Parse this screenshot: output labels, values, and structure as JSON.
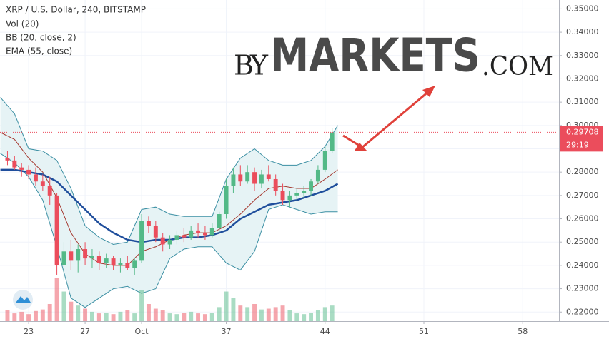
{
  "chart_data": {
    "type": "candlestick",
    "title": "XRP / U.S. Dollar, 240, BITSTAMP",
    "volume_name": "Vol (20)",
    "up_color": "#53b987",
    "down_color": "#eb4d5c",
    "x": [
      21.5,
      22,
      22.5,
      23,
      23.5,
      24,
      24.5,
      25,
      25.5,
      26,
      26.5,
      27,
      27.5,
      28,
      28.5,
      29,
      29.5,
      30,
      30.5,
      31,
      31.5,
      32,
      32.5,
      33,
      33.5,
      34,
      34.5,
      35,
      35.5,
      36,
      36.5,
      37,
      37.5,
      38,
      38.5,
      39,
      39.5,
      40,
      40.5,
      41,
      41.5,
      42,
      42.5,
      43,
      43.5,
      44,
      44.5
    ],
    "open": [
      0.286,
      0.285,
      0.282,
      0.281,
      0.279,
      0.276,
      0.274,
      0.27,
      0.24,
      0.246,
      0.242,
      0.247,
      0.243,
      0.244,
      0.241,
      0.243,
      0.24,
      0.241,
      0.239,
      0.242,
      0.259,
      0.257,
      0.252,
      0.249,
      0.251,
      0.253,
      0.252,
      0.255,
      0.254,
      0.253,
      0.256,
      0.262,
      0.274,
      0.279,
      0.276,
      0.28,
      0.275,
      0.279,
      0.277,
      0.272,
      0.268,
      0.27,
      0.271,
      0.272,
      0.276,
      0.281,
      0.289
    ],
    "high": [
      0.289,
      0.287,
      0.284,
      0.283,
      0.282,
      0.279,
      0.278,
      0.271,
      0.25,
      0.251,
      0.249,
      0.25,
      0.247,
      0.246,
      0.245,
      0.244,
      0.243,
      0.244,
      0.243,
      0.262,
      0.261,
      0.259,
      0.254,
      0.253,
      0.255,
      0.256,
      0.257,
      0.258,
      0.257,
      0.258,
      0.263,
      0.277,
      0.282,
      0.283,
      0.283,
      0.282,
      0.281,
      0.283,
      0.279,
      0.275,
      0.272,
      0.273,
      0.274,
      0.277,
      0.283,
      0.291,
      0.299
    ],
    "low": [
      0.283,
      0.281,
      0.278,
      0.277,
      0.274,
      0.272,
      0.266,
      0.236,
      0.234,
      0.238,
      0.237,
      0.24,
      0.239,
      0.238,
      0.239,
      0.238,
      0.237,
      0.238,
      0.236,
      0.241,
      0.254,
      0.25,
      0.246,
      0.247,
      0.249,
      0.25,
      0.251,
      0.252,
      0.251,
      0.252,
      0.254,
      0.26,
      0.271,
      0.274,
      0.275,
      0.272,
      0.273,
      0.276,
      0.27,
      0.266,
      0.265,
      0.268,
      0.269,
      0.27,
      0.275,
      0.28,
      0.288
    ],
    "close": [
      0.285,
      0.282,
      0.281,
      0.279,
      0.276,
      0.274,
      0.27,
      0.24,
      0.246,
      0.242,
      0.247,
      0.243,
      0.244,
      0.241,
      0.243,
      0.24,
      0.241,
      0.239,
      0.242,
      0.259,
      0.257,
      0.252,
      0.249,
      0.251,
      0.253,
      0.252,
      0.255,
      0.254,
      0.253,
      0.256,
      0.262,
      0.274,
      0.279,
      0.276,
      0.28,
      0.275,
      0.279,
      0.277,
      0.272,
      0.268,
      0.27,
      0.271,
      0.272,
      0.276,
      0.281,
      0.289,
      0.297
    ],
    "volume": [
      14,
      10,
      12,
      9,
      13,
      15,
      22,
      55,
      38,
      25,
      20,
      16,
      12,
      10,
      11,
      9,
      12,
      14,
      10,
      40,
      22,
      16,
      14,
      10,
      9,
      11,
      12,
      10,
      9,
      11,
      18,
      38,
      30,
      20,
      18,
      22,
      15,
      16,
      18,
      20,
      14,
      10,
      9,
      11,
      14,
      18,
      20
    ],
    "bollinger": {
      "name": "BB (20, close, 2)",
      "color": "#3b8fa3",
      "middle_color": "#a5382f",
      "fill": "#e6f3f5",
      "x": [
        21,
        22,
        23,
        24,
        25,
        26,
        27,
        28,
        29,
        30,
        31,
        32,
        33,
        34,
        35,
        36,
        37,
        38,
        39,
        40,
        41,
        42,
        43,
        44,
        44.9
      ],
      "upper": [
        0.312,
        0.305,
        0.29,
        0.289,
        0.285,
        0.273,
        0.257,
        0.252,
        0.249,
        0.25,
        0.264,
        0.265,
        0.262,
        0.261,
        0.261,
        0.261,
        0.277,
        0.286,
        0.29,
        0.285,
        0.283,
        0.283,
        0.285,
        0.291,
        0.3
      ],
      "middle": [
        0.297,
        0.294,
        0.286,
        0.28,
        0.269,
        0.254,
        0.245,
        0.241,
        0.24,
        0.24,
        0.246,
        0.248,
        0.251,
        0.253,
        0.254,
        0.254,
        0.257,
        0.262,
        0.268,
        0.273,
        0.274,
        0.273,
        0.273,
        0.277,
        0.281
      ],
      "lower": [
        0.288,
        0.284,
        0.278,
        0.268,
        0.248,
        0.226,
        0.222,
        0.226,
        0.23,
        0.231,
        0.228,
        0.23,
        0.243,
        0.247,
        0.248,
        0.248,
        0.241,
        0.238,
        0.246,
        0.264,
        0.266,
        0.264,
        0.262,
        0.263,
        0.263
      ]
    },
    "ema": {
      "name": "EMA (55, close)",
      "color": "#1f4e9c",
      "x": [
        21,
        22,
        23,
        24,
        25,
        26,
        27,
        28,
        29,
        30,
        31,
        32,
        33,
        34,
        35,
        36,
        37,
        38,
        39,
        40,
        41,
        42,
        43,
        44,
        44.9
      ],
      "values": [
        0.281,
        0.281,
        0.28,
        0.279,
        0.276,
        0.27,
        0.264,
        0.258,
        0.254,
        0.251,
        0.25,
        0.251,
        0.251,
        0.252,
        0.252,
        0.253,
        0.255,
        0.26,
        0.263,
        0.266,
        0.267,
        0.268,
        0.27,
        0.272,
        0.275
      ]
    },
    "xlim": [
      20.97,
      60.57
    ],
    "xticks": [
      23,
      27,
      {
        "value": 31,
        "label": "Oct"
      },
      37,
      44,
      51,
      58
    ],
    "ylim": [
      0.2161,
      0.3538
    ],
    "yticks": [
      {
        "value": 0.22,
        "label": "0.22000"
      },
      {
        "value": 0.23,
        "label": "0.23000"
      },
      {
        "value": 0.24,
        "label": "0.24000"
      },
      {
        "value": 0.25,
        "label": "0.25000"
      },
      {
        "value": 0.26,
        "label": "0.26000"
      },
      {
        "value": 0.27,
        "label": "0.27000"
      },
      {
        "value": 0.28,
        "label": "0.28000"
      },
      {
        "value": 0.29,
        "label": "0.29000"
      },
      {
        "value": 0.3,
        "label": "0.30000"
      },
      {
        "value": 0.31,
        "label": "0.31000"
      },
      {
        "value": 0.32,
        "label": "0.32000"
      },
      {
        "value": 0.33,
        "label": "0.33000"
      },
      {
        "value": 0.34,
        "label": "0.34000"
      },
      {
        "value": 0.35,
        "label": "0.35000"
      }
    ],
    "grid": true,
    "last_price": {
      "value": 0.29708,
      "label": "0.29708",
      "color": "#eb4d5c"
    },
    "countdown": "29:19",
    "watermark": {
      "by": "BY",
      "brand": "MARKETS",
      "domain": ".COM",
      "brand_color": "#1b6fd1"
    }
  }
}
